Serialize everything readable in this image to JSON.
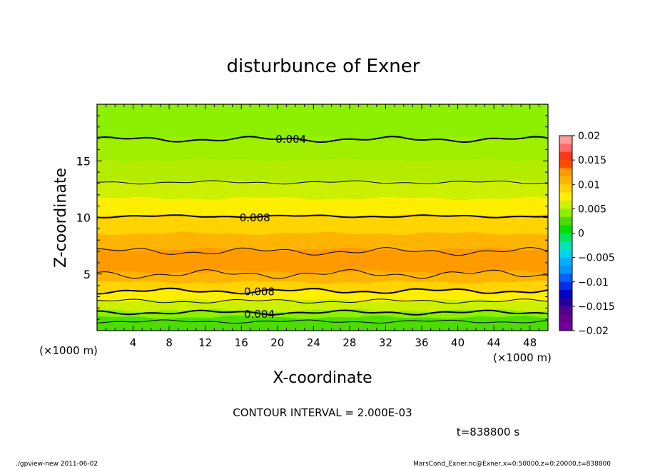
{
  "chart_data": {
    "type": "contour",
    "title": "disturbunce of Exner",
    "xlabel": "X-coordinate",
    "ylabel": "Z-coordinate",
    "x_unit": "(×1000 m)",
    "z_unit": "(×1000 m)",
    "xlim": [
      0,
      50
    ],
    "zlim": [
      0,
      20
    ],
    "x_ticks": [
      4,
      8,
      12,
      16,
      20,
      24,
      28,
      32,
      36,
      40,
      44,
      48
    ],
    "z_ticks": [
      5,
      10,
      15
    ],
    "colorbar": {
      "levels": [
        0.02,
        0.015,
        0.01,
        0.005,
        0,
        -0.005,
        -0.01,
        -0.015,
        -0.02
      ],
      "tick_labels": [
        "0.02",
        "0.015",
        "0.01",
        "0.005",
        "0",
        "−0.005",
        "−0.01",
        "−0.015",
        "−0.02"
      ],
      "colors": [
        "#ff9b9b",
        "#ff6a6a",
        "#ff3a1a",
        "#ff4a00",
        "#ff9a00",
        "#ffb400",
        "#ffd400",
        "#ffee00",
        "#ccf000",
        "#8cf000",
        "#4cdc00",
        "#00e000",
        "#00e45a",
        "#00e6b4",
        "#00d6e8",
        "#00b0ff",
        "#0096ff",
        "#0060ff",
        "#0030e6",
        "#0000c8",
        "#2000a0",
        "#500090",
        "#6a008c",
        "#7000a0"
      ]
    },
    "bands": [
      {
        "z0": 0.0,
        "z1": 0.6,
        "color": "#4cdc00"
      },
      {
        "z0": 0.6,
        "z1": 1.2,
        "color": "#4cdc00"
      },
      {
        "z0": 1.2,
        "z1": 1.8,
        "color": "#8cf000"
      },
      {
        "z0": 1.8,
        "z1": 2.7,
        "color": "#ccf000"
      },
      {
        "z0": 2.7,
        "z1": 3.5,
        "color": "#ffee00"
      },
      {
        "z0": 3.5,
        "z1": 4.3,
        "color": "#ffd400"
      },
      {
        "z0": 4.3,
        "z1": 5.2,
        "color": "#ffb400"
      },
      {
        "z0": 5.2,
        "z1": 7.2,
        "color": "#ff9a00"
      },
      {
        "z0": 7.2,
        "z1": 8.6,
        "color": "#ffb400"
      },
      {
        "z0": 8.6,
        "z1": 10.2,
        "color": "#ffd400"
      },
      {
        "z0": 10.2,
        "z1": 11.7,
        "color": "#ffee00"
      },
      {
        "z0": 11.7,
        "z1": 13.2,
        "color": "#ccf000"
      },
      {
        "z0": 13.2,
        "z1": 15.1,
        "color": "#b4ec00"
      },
      {
        "z0": 15.1,
        "z1": 17.0,
        "color": "#a0ee00"
      },
      {
        "z0": 17.0,
        "z1": 20.0,
        "color": "#8cf000"
      }
    ],
    "contours": [
      {
        "level": 0.004,
        "label": "0.004",
        "label_x": 21.5,
        "z": 16.9,
        "amp": 0.25,
        "bold": true
      },
      {
        "level": 0.006,
        "label": "",
        "z": 13.1,
        "amp": 0.15,
        "bold": false
      },
      {
        "level": 0.008,
        "label": "0.008",
        "label_x": 17.5,
        "z": 10.1,
        "amp": 0.12,
        "bold": true
      },
      {
        "level": 0.01,
        "label": "",
        "z": 7.0,
        "amp": 0.35,
        "bold": false
      },
      {
        "level": 0.01,
        "label": "",
        "z": 5.0,
        "amp": 0.4,
        "bold": false
      },
      {
        "level": 0.008,
        "label": "0.008",
        "label_x": 18.0,
        "z": 3.5,
        "amp": 0.25,
        "bold": true
      },
      {
        "level": 0.006,
        "label": "",
        "z": 2.6,
        "amp": 0.2,
        "bold": false
      },
      {
        "level": 0.004,
        "label": "0.004",
        "label_x": 18.0,
        "z": 1.6,
        "amp": 0.2,
        "bold": true
      },
      {
        "level": 0.002,
        "label": "",
        "z": 0.8,
        "amp": 0.15,
        "bold": false
      }
    ],
    "contour_interval_text": "CONTOUR INTERVAL = 2.000E-03",
    "time_text": "t=838800 s"
  },
  "footer": {
    "left": "./gpview-new   2011-06-02",
    "right": "MarsCond_Exner.nc@Exner,x=0:50000,z=0:20000,t=838800"
  }
}
